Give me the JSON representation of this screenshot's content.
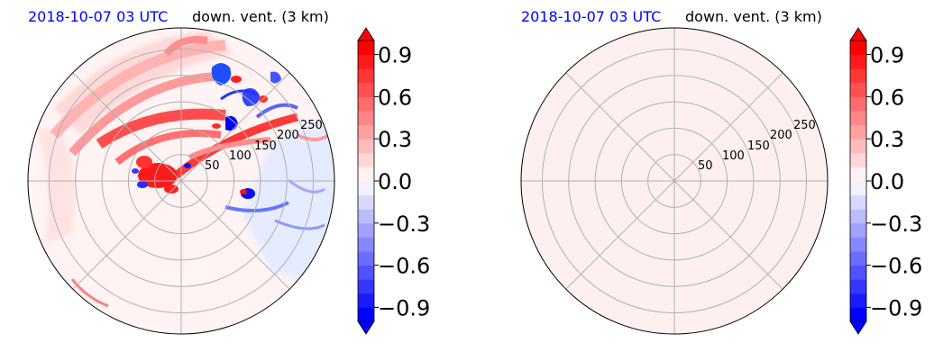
{
  "colors": {
    "positive": "#ff0000",
    "negative": "#0000ff",
    "date": "#0000ff",
    "grid": "#b0b0b0"
  },
  "chart_data": [
    {
      "type": "heatmap",
      "projection": "polar",
      "date_label": "2018-10-07 03 UTC",
      "title": "down. vent. (3 km)",
      "radial_ticks": [
        "50",
        "100",
        "150",
        "200",
        "250"
      ],
      "radial_tick_values": [
        50,
        100,
        150,
        200,
        250
      ],
      "angular_grid_deg": 45,
      "field": "mixed positive/negative structure; positive bands in north-west quadrant, negative eddies in north-east, weak negative in south-east",
      "colorbar": {
        "ticks": [
          "0.9",
          "0.6",
          "0.3",
          "0.0",
          "−0.3",
          "−0.6",
          "−0.9"
        ],
        "tick_values": [
          0.9,
          0.6,
          0.3,
          0.0,
          -0.3,
          -0.6,
          -0.9
        ],
        "range": [
          -1.0,
          1.0
        ],
        "extend": "both",
        "cmap": "bwr"
      }
    },
    {
      "type": "heatmap",
      "projection": "polar",
      "date_label": "2018-10-07 03 UTC",
      "title": "down. vent. (3 km)",
      "radial_ticks": [
        "50",
        "100",
        "150",
        "200",
        "250"
      ],
      "radial_tick_values": [
        50,
        100,
        150,
        200,
        250
      ],
      "angular_grid_deg": 45,
      "field": "uniform very small positive value",
      "colorbar": {
        "ticks": [
          "0.9",
          "0.6",
          "0.3",
          "0.0",
          "−0.3",
          "−0.6",
          "−0.9"
        ],
        "tick_values": [
          0.9,
          0.6,
          0.3,
          0.0,
          -0.3,
          -0.6,
          -0.9
        ],
        "range": [
          -1.0,
          1.0
        ],
        "extend": "both",
        "cmap": "bwr"
      }
    }
  ]
}
